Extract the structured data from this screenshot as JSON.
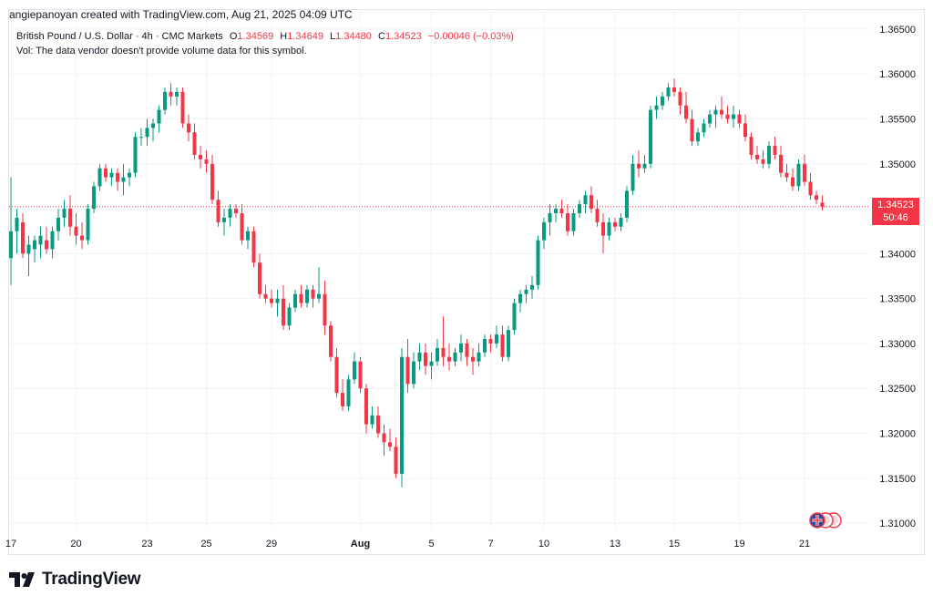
{
  "header": {
    "credit": "angiepanoyan created with TradingView.com, Aug 21, 2025 04:09 UTC"
  },
  "legend": {
    "symbol": "British Pound / U.S. Dollar · 4h · CMC Markets",
    "open_label": "O",
    "open": "1.34569",
    "high_label": "H",
    "high": "1.34649",
    "low_label": "L",
    "low": "1.34480",
    "close_label": "C",
    "close": "1.34523",
    "change": "−0.00046 (−0.03%)",
    "vol_note": "Vol: The data vendor doesn't provide volume data for this symbol."
  },
  "price_tag": {
    "price": "1.34523",
    "countdown": "50:46"
  },
  "brand": {
    "name": "TradingView"
  },
  "colors": {
    "up": "#089981",
    "down": "#f23645",
    "grid": "#f0f3fa",
    "text": "#131722"
  },
  "chart_data": {
    "type": "candlestick",
    "interval": "4h",
    "symbol": "GBPUSD",
    "y_axis": {
      "ticks": [
        "1.36500",
        "1.36000",
        "1.35500",
        "1.35000",
        "1.34500",
        "1.34000",
        "1.33500",
        "1.33000",
        "1.32500",
        "1.32000",
        "1.31500",
        "1.31000"
      ],
      "range": [
        1.3095,
        1.3655
      ]
    },
    "x_axis": {
      "ticks": [
        {
          "label": "17",
          "t": 0
        },
        {
          "label": "20",
          "t": 11
        },
        {
          "label": "23",
          "t": 23
        },
        {
          "label": "25",
          "t": 33
        },
        {
          "label": "29",
          "t": 44
        },
        {
          "label": "Aug",
          "t": 59
        },
        {
          "label": "5",
          "t": 71
        },
        {
          "label": "7",
          "t": 81
        },
        {
          "label": "10",
          "t": 90
        },
        {
          "label": "13",
          "t": 102
        },
        {
          "label": "15",
          "t": 112
        },
        {
          "label": "19",
          "t": 123
        },
        {
          "label": "21",
          "t": 134
        }
      ]
    },
    "last_price": 1.34523,
    "candles": [
      [
        1.3395,
        1.3485,
        1.3365,
        1.3425
      ],
      [
        1.3425,
        1.345,
        1.34,
        1.344
      ],
      [
        1.3435,
        1.3445,
        1.3395,
        1.34
      ],
      [
        1.34,
        1.342,
        1.3375,
        1.341
      ],
      [
        1.3405,
        1.342,
        1.339,
        1.3415
      ],
      [
        1.341,
        1.343,
        1.3395,
        1.342
      ],
      [
        1.3415,
        1.343,
        1.34,
        1.3405
      ],
      [
        1.3405,
        1.343,
        1.3395,
        1.3425
      ],
      [
        1.3425,
        1.345,
        1.3415,
        1.344
      ],
      [
        1.344,
        1.346,
        1.343,
        1.345
      ],
      [
        1.345,
        1.3465,
        1.342,
        1.343
      ],
      [
        1.343,
        1.3445,
        1.341,
        1.342
      ],
      [
        1.342,
        1.3435,
        1.3405,
        1.3415
      ],
      [
        1.3415,
        1.3455,
        1.341,
        1.345
      ],
      [
        1.345,
        1.348,
        1.3445,
        1.3475
      ],
      [
        1.3475,
        1.35,
        1.347,
        1.3495
      ],
      [
        1.3495,
        1.35,
        1.348,
        1.3485
      ],
      [
        1.3485,
        1.3495,
        1.3475,
        1.349
      ],
      [
        1.349,
        1.3495,
        1.347,
        1.348
      ],
      [
        1.348,
        1.35,
        1.3465,
        1.3485
      ],
      [
        1.3485,
        1.3495,
        1.3475,
        1.349
      ],
      [
        1.349,
        1.3535,
        1.3485,
        1.353
      ],
      [
        1.353,
        1.354,
        1.352,
        1.353
      ],
      [
        1.353,
        1.355,
        1.352,
        1.354
      ],
      [
        1.354,
        1.355,
        1.3525,
        1.3545
      ],
      [
        1.3545,
        1.3565,
        1.3535,
        1.356
      ],
      [
        1.356,
        1.3585,
        1.3555,
        1.358
      ],
      [
        1.358,
        1.359,
        1.3565,
        1.3575
      ],
      [
        1.3575,
        1.3585,
        1.3565,
        1.358
      ],
      [
        1.358,
        1.3585,
        1.354,
        1.3545
      ],
      [
        1.3545,
        1.3555,
        1.3525,
        1.3535
      ],
      [
        1.3535,
        1.3545,
        1.3505,
        1.351
      ],
      [
        1.351,
        1.352,
        1.3495,
        1.3505
      ],
      [
        1.3505,
        1.3515,
        1.349,
        1.35
      ],
      [
        1.35,
        1.351,
        1.3455,
        1.346
      ],
      [
        1.346,
        1.347,
        1.343,
        1.3435
      ],
      [
        1.3435,
        1.345,
        1.342,
        1.344
      ],
      [
        1.344,
        1.3455,
        1.343,
        1.345
      ],
      [
        1.345,
        1.3455,
        1.344,
        1.3445
      ],
      [
        1.3445,
        1.3455,
        1.341,
        1.3415
      ],
      [
        1.3415,
        1.343,
        1.3405,
        1.3425
      ],
      [
        1.3425,
        1.343,
        1.3385,
        1.339
      ],
      [
        1.339,
        1.34,
        1.335,
        1.3355
      ],
      [
        1.3355,
        1.3365,
        1.3345,
        1.335
      ],
      [
        1.335,
        1.336,
        1.334,
        1.3345
      ],
      [
        1.3345,
        1.336,
        1.333,
        1.335
      ],
      [
        1.335,
        1.3365,
        1.3315,
        1.332
      ],
      [
        1.332,
        1.3345,
        1.3315,
        1.334
      ],
      [
        1.334,
        1.336,
        1.3335,
        1.3355
      ],
      [
        1.3355,
        1.3365,
        1.334,
        1.3345
      ],
      [
        1.3345,
        1.3365,
        1.334,
        1.336
      ],
      [
        1.336,
        1.3365,
        1.334,
        1.335
      ],
      [
        1.335,
        1.3385,
        1.3345,
        1.3355
      ],
      [
        1.3355,
        1.337,
        1.331,
        1.332
      ],
      [
        1.332,
        1.3325,
        1.328,
        1.3285
      ],
      [
        1.3285,
        1.3295,
        1.324,
        1.3245
      ],
      [
        1.3245,
        1.326,
        1.3225,
        1.323
      ],
      [
        1.323,
        1.3265,
        1.3225,
        1.326
      ],
      [
        1.326,
        1.329,
        1.3255,
        1.328
      ],
      [
        1.328,
        1.3285,
        1.3245,
        1.325
      ],
      [
        1.325,
        1.3255,
        1.32,
        1.321
      ],
      [
        1.321,
        1.323,
        1.3205,
        1.322
      ],
      [
        1.322,
        1.323,
        1.3195,
        1.32
      ],
      [
        1.32,
        1.321,
        1.3175,
        1.319
      ],
      [
        1.319,
        1.3205,
        1.318,
        1.3185
      ],
      [
        1.3185,
        1.3195,
        1.315,
        1.3155
      ],
      [
        1.3155,
        1.3295,
        1.314,
        1.3285
      ],
      [
        1.3285,
        1.3305,
        1.3245,
        1.3255
      ],
      [
        1.3255,
        1.329,
        1.325,
        1.328
      ],
      [
        1.328,
        1.33,
        1.327,
        1.329
      ],
      [
        1.329,
        1.33,
        1.3265,
        1.3275
      ],
      [
        1.3275,
        1.329,
        1.326,
        1.328
      ],
      [
        1.328,
        1.3305,
        1.3275,
        1.3295
      ],
      [
        1.3295,
        1.333,
        1.3275,
        1.3285
      ],
      [
        1.3285,
        1.33,
        1.327,
        1.328
      ],
      [
        1.328,
        1.3295,
        1.3275,
        1.329
      ],
      [
        1.329,
        1.331,
        1.328,
        1.33
      ],
      [
        1.33,
        1.3305,
        1.3275,
        1.3285
      ],
      [
        1.3285,
        1.3295,
        1.3265,
        1.328
      ],
      [
        1.328,
        1.33,
        1.3275,
        1.329
      ],
      [
        1.329,
        1.331,
        1.3285,
        1.3305
      ],
      [
        1.3305,
        1.331,
        1.329,
        1.33
      ],
      [
        1.33,
        1.332,
        1.3295,
        1.331
      ],
      [
        1.331,
        1.332,
        1.328,
        1.3285
      ],
      [
        1.3285,
        1.332,
        1.328,
        1.3315
      ],
      [
        1.3315,
        1.335,
        1.331,
        1.3345
      ],
      [
        1.3345,
        1.336,
        1.3335,
        1.3355
      ],
      [
        1.3355,
        1.3365,
        1.3345,
        1.336
      ],
      [
        1.336,
        1.3375,
        1.335,
        1.3365
      ],
      [
        1.3365,
        1.342,
        1.336,
        1.3415
      ],
      [
        1.3415,
        1.344,
        1.3405,
        1.3435
      ],
      [
        1.3435,
        1.3455,
        1.342,
        1.3445
      ],
      [
        1.3445,
        1.3455,
        1.3435,
        1.345
      ],
      [
        1.345,
        1.346,
        1.344,
        1.3445
      ],
      [
        1.3445,
        1.3455,
        1.342,
        1.3425
      ],
      [
        1.3425,
        1.345,
        1.342,
        1.3445
      ],
      [
        1.3445,
        1.346,
        1.344,
        1.3455
      ],
      [
        1.3455,
        1.347,
        1.3445,
        1.3465
      ],
      [
        1.3465,
        1.3475,
        1.3445,
        1.345
      ],
      [
        1.345,
        1.346,
        1.343,
        1.3435
      ],
      [
        1.3435,
        1.3445,
        1.34,
        1.342
      ],
      [
        1.342,
        1.344,
        1.3415,
        1.3435
      ],
      [
        1.3435,
        1.344,
        1.3425,
        1.343
      ],
      [
        1.343,
        1.3445,
        1.3425,
        1.344
      ],
      [
        1.344,
        1.3475,
        1.3435,
        1.347
      ],
      [
        1.347,
        1.351,
        1.3465,
        1.35
      ],
      [
        1.35,
        1.3515,
        1.3485,
        1.3495
      ],
      [
        1.3495,
        1.351,
        1.349,
        1.35
      ],
      [
        1.35,
        1.3565,
        1.3495,
        1.356
      ],
      [
        1.356,
        1.3575,
        1.355,
        1.3565
      ],
      [
        1.3565,
        1.358,
        1.356,
        1.3575
      ],
      [
        1.3575,
        1.359,
        1.357,
        1.3585
      ],
      [
        1.3585,
        1.3595,
        1.3575,
        1.358
      ],
      [
        1.358,
        1.3585,
        1.3555,
        1.3565
      ],
      [
        1.3565,
        1.358,
        1.3545,
        1.355
      ],
      [
        1.355,
        1.356,
        1.352,
        1.3525
      ],
      [
        1.3525,
        1.354,
        1.352,
        1.3535
      ],
      [
        1.3535,
        1.355,
        1.353,
        1.3545
      ],
      [
        1.3545,
        1.356,
        1.354,
        1.3555
      ],
      [
        1.3555,
        1.3565,
        1.354,
        1.356
      ],
      [
        1.356,
        1.3575,
        1.355,
        1.3555
      ],
      [
        1.3555,
        1.3565,
        1.3545,
        1.355
      ],
      [
        1.355,
        1.3565,
        1.354,
        1.3555
      ],
      [
        1.3555,
        1.356,
        1.354,
        1.3545
      ],
      [
        1.3545,
        1.3555,
        1.3525,
        1.353
      ],
      [
        1.353,
        1.3535,
        1.3505,
        1.351
      ],
      [
        1.351,
        1.352,
        1.35,
        1.3505
      ],
      [
        1.3505,
        1.3515,
        1.3495,
        1.35
      ],
      [
        1.35,
        1.3525,
        1.3495,
        1.352
      ],
      [
        1.352,
        1.353,
        1.3505,
        1.351
      ],
      [
        1.351,
        1.352,
        1.3485,
        1.349
      ],
      [
        1.349,
        1.35,
        1.348,
        1.3485
      ],
      [
        1.3485,
        1.3495,
        1.347,
        1.3475
      ],
      [
        1.3475,
        1.3505,
        1.347,
        1.35
      ],
      [
        1.35,
        1.351,
        1.3475,
        1.348
      ],
      [
        1.348,
        1.349,
        1.346,
        1.3465
      ],
      [
        1.3465,
        1.347,
        1.3455,
        1.346
      ],
      [
        1.34569,
        1.34649,
        1.3448,
        1.34523
      ]
    ]
  }
}
